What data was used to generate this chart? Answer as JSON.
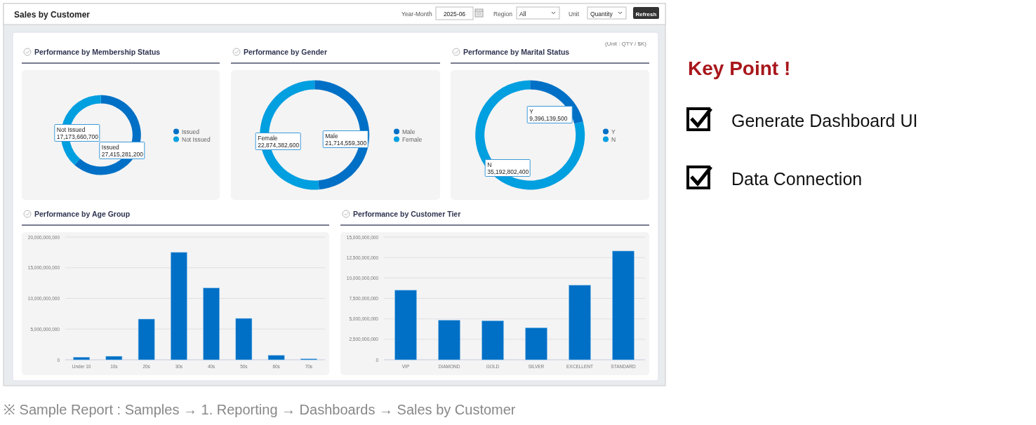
{
  "chart_data": [
    {
      "type": "other",
      "title": "Sales by Customer",
      "annotations": [
        "Year-Month",
        "2025-06",
        "Region",
        "All",
        "Unit",
        "Quantity",
        "Refresh",
        "(Unit : QTY / $K)"
      ]
    },
    {
      "type": "donut",
      "title": "Performance by Membership Status",
      "categories": [
        "Issued",
        "Not Issued"
      ],
      "values": [
        27415281200,
        17173660700
      ],
      "value_labels": [
        "27,415,281,200",
        "17,173,660,700"
      ],
      "colors": [
        "#0070c6",
        "#009fe0"
      ],
      "legend": "right"
    },
    {
      "type": "donut",
      "title": "Performance by Gender",
      "categories": [
        "Male",
        "Female"
      ],
      "values": [
        21714559300,
        22874382600
      ],
      "value_labels": [
        "21,714,559,300",
        "22,874,382,600"
      ],
      "colors": [
        "#0070c6",
        "#009fe0"
      ],
      "legend": "right"
    },
    {
      "type": "donut",
      "title": "Performance by Marital Status",
      "categories": [
        "Y",
        "N"
      ],
      "values": [
        9396139500,
        35192802400
      ],
      "value_labels": [
        "9,396,139,500",
        "35,192,802,400"
      ],
      "colors": [
        "#0070c6",
        "#009fe0"
      ],
      "legend": "right"
    },
    {
      "type": "bar",
      "title": "Performance by Age Group",
      "categories": [
        "Under 10",
        "10s",
        "20s",
        "30s",
        "40s",
        "50s",
        "60s",
        "70s"
      ],
      "values": [
        420000000,
        570000000,
        6630000000,
        17500000000,
        11700000000,
        6740000000,
        720000000,
        150000000
      ],
      "color": "#0070c6",
      "ylim": [
        0,
        20000000000
      ],
      "yticks": [
        0,
        {
          "value": 5000000000,
          "label": "5,000,000,000"
        },
        {
          "value": 10000000000,
          "label": "10,000,000,000"
        },
        {
          "value": 15000000000,
          "label": "15,000,000,000"
        },
        {
          "value": 20000000000,
          "label": "20,000,000,000"
        }
      ],
      "grid": "y"
    },
    {
      "type": "bar",
      "title": "Performance by Customer Tier",
      "categories": [
        "VIP",
        "DIAMOND",
        "GOLD",
        "SILVER",
        "EXCELLENT",
        "STANDARD"
      ],
      "values": [
        8500000000,
        4830000000,
        4770000000,
        3910000000,
        9110000000,
        13290000000
      ],
      "color": "#0070c6",
      "ylim": [
        0,
        15000000000
      ],
      "yticks": [
        0,
        {
          "value": 2500000000,
          "label": "2,500,000,000"
        },
        {
          "value": 5000000000,
          "label": "5,000,000,000"
        },
        {
          "value": 7500000000,
          "label": "7,500,000,000"
        },
        {
          "value": 10000000000,
          "label": "10,000,000,000"
        },
        {
          "value": 12500000000,
          "label": "12,500,000,000"
        },
        {
          "value": 15000000000,
          "label": "15,000,000,000"
        }
      ],
      "grid": "y"
    },
    {
      "type": "other",
      "title": "Key Point !",
      "annotations": [
        "Generate Dashboard UI",
        "Data Connection"
      ]
    },
    {
      "type": "other",
      "annotations": [
        "※ Sample Report : Samples → 1. Reporting → Dashboards → Sales by Customer"
      ]
    }
  ]
}
